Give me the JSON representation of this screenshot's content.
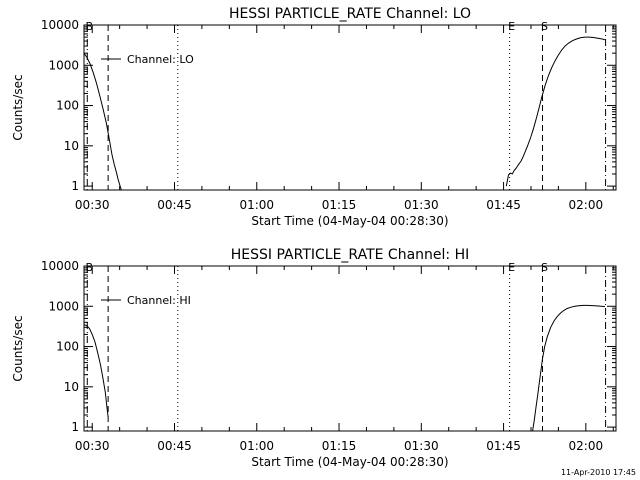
{
  "footer": {
    "timestamp": "11-Apr-2010 17:45"
  },
  "chart_data": [
    {
      "type": "line",
      "title": "HESSI PARTICLE_RATE Channel: LO",
      "xlabel": "Start Time (04-May-04 00:28:30)",
      "ylabel": "Counts/sec",
      "yscale": "log",
      "xlim": [
        28.5,
        125.5
      ],
      "ylim": [
        0.8,
        10000
      ],
      "x_unit": "minutes after 00:00 UT",
      "x_ticks": [
        {
          "value": 30,
          "label": "00:30"
        },
        {
          "value": 45,
          "label": "00:45"
        },
        {
          "value": 60,
          "label": "01:00"
        },
        {
          "value": 75,
          "label": "01:15"
        },
        {
          "value": 90,
          "label": "01:30"
        },
        {
          "value": 105,
          "label": "01:45"
        },
        {
          "value": 120,
          "label": "02:00"
        }
      ],
      "y_ticks": [
        {
          "value": 1,
          "label": "1"
        },
        {
          "value": 10,
          "label": "10"
        },
        {
          "value": 100,
          "label": "100"
        },
        {
          "value": 1000,
          "label": "1000"
        },
        {
          "value": 10000,
          "label": "10000"
        }
      ],
      "legend": [
        "Channel: LO"
      ],
      "markers": [
        {
          "x": 29.1,
          "style": "dashdot",
          "label": "B"
        },
        {
          "x": 32.9,
          "style": "dashed",
          "label": ""
        },
        {
          "x": 45.6,
          "style": "dotted",
          "label": ""
        },
        {
          "x": 106.1,
          "style": "dotted",
          "label": "E"
        },
        {
          "x": 112.1,
          "style": "dashed",
          "label": "S"
        },
        {
          "x": 123.6,
          "style": "dashdot",
          "label": ""
        }
      ],
      "series": [
        {
          "name": "Channel: LO",
          "segments": [
            {
              "x": [
                28.5,
                29.0,
                29.6,
                30.2,
                30.8,
                31.4,
                32.0,
                32.6,
                33.1,
                33.6,
                34.0,
                34.4,
                34.7,
                35.0,
                35.3
              ],
              "y": [
                2000,
                1600,
                1100,
                650,
                350,
                170,
                80,
                35,
                15,
                6,
                3.5,
                2.2,
                1.5,
                1.1,
                0.8
              ]
            },
            {
              "x": [
                105.5,
                105.9,
                106.3,
                106.6,
                106.9,
                107.3,
                107.7,
                108.2,
                108.6,
                109.0,
                109.5,
                110.0,
                110.5,
                111.0,
                111.5,
                112.0,
                112.6,
                113.2,
                113.8,
                114.4,
                115.0,
                115.6,
                116.2,
                116.9,
                117.6,
                118.3,
                119.0,
                119.8,
                120.6,
                121.4,
                122.2,
                123.0,
                123.5
              ],
              "y": [
                1,
                1.9,
                2.1,
                2.0,
                2.4,
                2.8,
                3.4,
                4.2,
                5.5,
                7.5,
                11,
                17,
                28,
                50,
                90,
                170,
                320,
                560,
                880,
                1300,
                1800,
                2400,
                3000,
                3600,
                4100,
                4500,
                4800,
                5000,
                5000,
                4900,
                4700,
                4500,
                4300
              ]
            }
          ]
        }
      ]
    },
    {
      "type": "line",
      "title": "HESSI PARTICLE_RATE Channel: HI",
      "xlabel": "Start Time (04-May-04 00:28:30)",
      "ylabel": "Counts/sec",
      "yscale": "log",
      "xlim": [
        28.5,
        125.5
      ],
      "ylim": [
        0.8,
        10000
      ],
      "x_unit": "minutes after 00:00 UT",
      "x_ticks": [
        {
          "value": 30,
          "label": "00:30"
        },
        {
          "value": 45,
          "label": "00:45"
        },
        {
          "value": 60,
          "label": "01:00"
        },
        {
          "value": 75,
          "label": "01:15"
        },
        {
          "value": 90,
          "label": "01:30"
        },
        {
          "value": 105,
          "label": "01:45"
        },
        {
          "value": 120,
          "label": "02:00"
        }
      ],
      "y_ticks": [
        {
          "value": 1,
          "label": "1"
        },
        {
          "value": 10,
          "label": "10"
        },
        {
          "value": 100,
          "label": "100"
        },
        {
          "value": 1000,
          "label": "1000"
        },
        {
          "value": 10000,
          "label": "10000"
        }
      ],
      "legend": [
        "Channel: HI"
      ],
      "markers": [
        {
          "x": 29.1,
          "style": "dashdot",
          "label": "B"
        },
        {
          "x": 32.9,
          "style": "dashed",
          "label": ""
        },
        {
          "x": 45.6,
          "style": "dotted",
          "label": ""
        },
        {
          "x": 106.1,
          "style": "dotted",
          "label": "E"
        },
        {
          "x": 112.1,
          "style": "dashed",
          "label": "S"
        },
        {
          "x": 123.6,
          "style": "dashdot",
          "label": ""
        }
      ],
      "series": [
        {
          "name": "Channel: HI",
          "segments": [
            {
              "x": [
                28.5,
                29.0,
                29.5,
                30.0,
                30.5,
                31.0,
                31.5,
                32.0,
                32.4,
                32.7,
                32.9
              ],
              "y": [
                350,
                330,
                280,
                200,
                130,
                70,
                35,
                15,
                7,
                3,
                1.8
              ]
            },
            {
              "x": [
                110.3,
                110.6,
                110.9,
                111.2,
                111.5,
                111.8,
                112.1,
                112.5,
                113.0,
                113.6,
                114.2,
                114.8,
                115.4,
                116.0,
                116.6,
                117.3,
                118.0,
                118.7,
                119.5,
                120.3,
                121.1,
                122.0,
                122.8,
                123.5
              ],
              "y": [
                0.8,
                1.5,
                3,
                6,
                12,
                25,
                50,
                100,
                180,
                300,
                430,
                560,
                680,
                790,
                880,
                950,
                1000,
                1030,
                1050,
                1050,
                1040,
                1020,
                1000,
                980
              ]
            }
          ]
        }
      ]
    }
  ]
}
